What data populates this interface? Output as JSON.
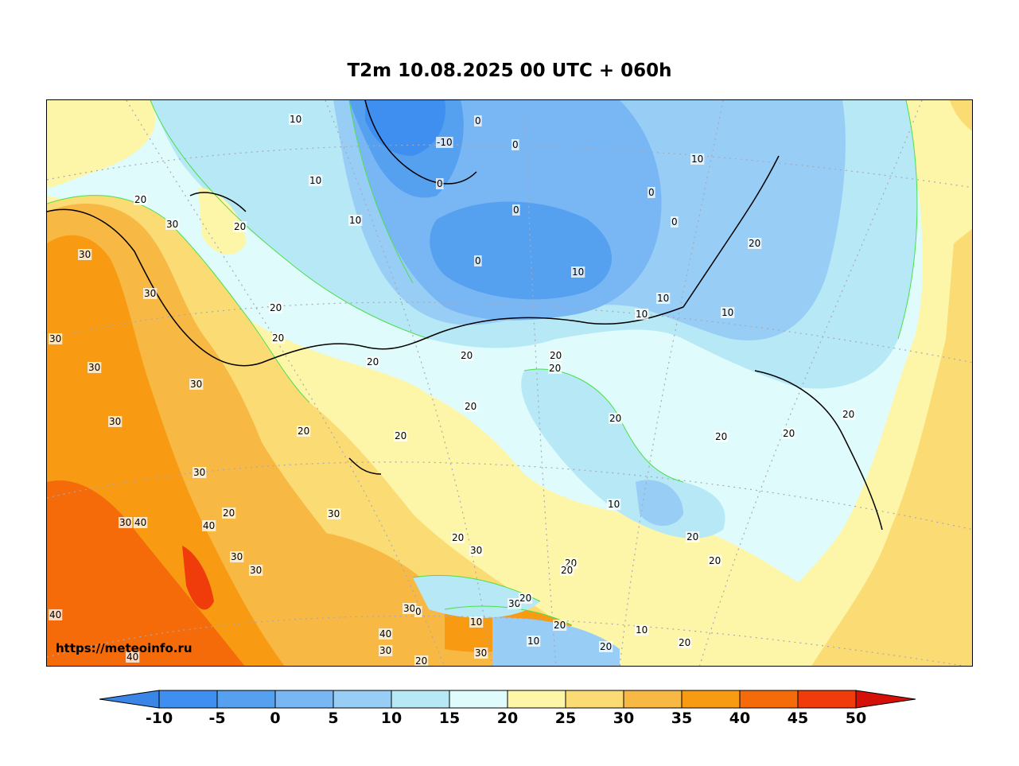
{
  "title": "T2m 10.08.2025 00 UTC + 060h",
  "watermark": "https://meteoinfo.ru",
  "colorbar": {
    "levels": [
      {
        "from": null,
        "to": -10,
        "color": "#3a86e6"
      },
      {
        "from": -10,
        "to": -5,
        "color": "#3f8ff0"
      },
      {
        "from": -5,
        "to": 0,
        "color": "#56a0f0"
      },
      {
        "from": 0,
        "to": 5,
        "color": "#79b6f4"
      },
      {
        "from": 5,
        "to": 10,
        "color": "#98cdf6"
      },
      {
        "from": 10,
        "to": 15,
        "color": "#b6e8f6"
      },
      {
        "from": 15,
        "to": 20,
        "color": "#e0fbfb"
      },
      {
        "from": 20,
        "to": 25,
        "color": "#fdf6a8"
      },
      {
        "from": 25,
        "to": 30,
        "color": "#fbdc74"
      },
      {
        "from": 30,
        "to": 35,
        "color": "#f8b844"
      },
      {
        "from": 35,
        "to": 40,
        "color": "#f89b12"
      },
      {
        "from": 40,
        "to": 45,
        "color": "#f56b0a"
      },
      {
        "from": 45,
        "to": 50,
        "color": "#f03b0a"
      },
      {
        "from": 50,
        "to": null,
        "color": "#d51008"
      }
    ],
    "tick_labels": [
      "-10",
      "-5",
      "0",
      "5",
      "10",
      "15",
      "20",
      "25",
      "30",
      "35",
      "40",
      "45",
      "50"
    ]
  },
  "contour_labels": {
    "a": "10",
    "b": "0",
    "c": "-10",
    "d": "0",
    "e": "10",
    "f": "0",
    "g": "0",
    "h": "10",
    "i": "20",
    "j": "30",
    "k": "20",
    "l": "30",
    "m": "0",
    "n": "0",
    "o": "0",
    "p": "10",
    "q": "30",
    "r": "20",
    "s": "30",
    "t": "20",
    "u": "10",
    "v": "20",
    "w": "20",
    "x": "10",
    "y": "10",
    "z": "10",
    "aa": "20",
    "ab": "30",
    "ac": "30",
    "ad": "20",
    "ae": "20",
    "af": "20",
    "ag": "20",
    "ah": "20",
    "ai": "20",
    "aj": "30",
    "ak": "30",
    "al": "20",
    "am": "30",
    "an": "10",
    "ao": "30",
    "ap": "40",
    "aq": "40",
    "ar": "20",
    "as": "30",
    "at": "30",
    "au": "20",
    "av": "30",
    "aw": "20",
    "ax": "20",
    "ay": "20",
    "az": "30",
    "ba": "20",
    "bb": "40",
    "bc": "30",
    "bd": "10",
    "be": "10",
    "bf": "20",
    "bg": "20",
    "bh": "40",
    "bi": "30",
    "bj": "20",
    "bk": "40",
    "bl": "10",
    "bm": "20",
    "bn": "20",
    "bo": "30",
    "bp": "20",
    "bq": "20",
    "br": "0"
  }
}
